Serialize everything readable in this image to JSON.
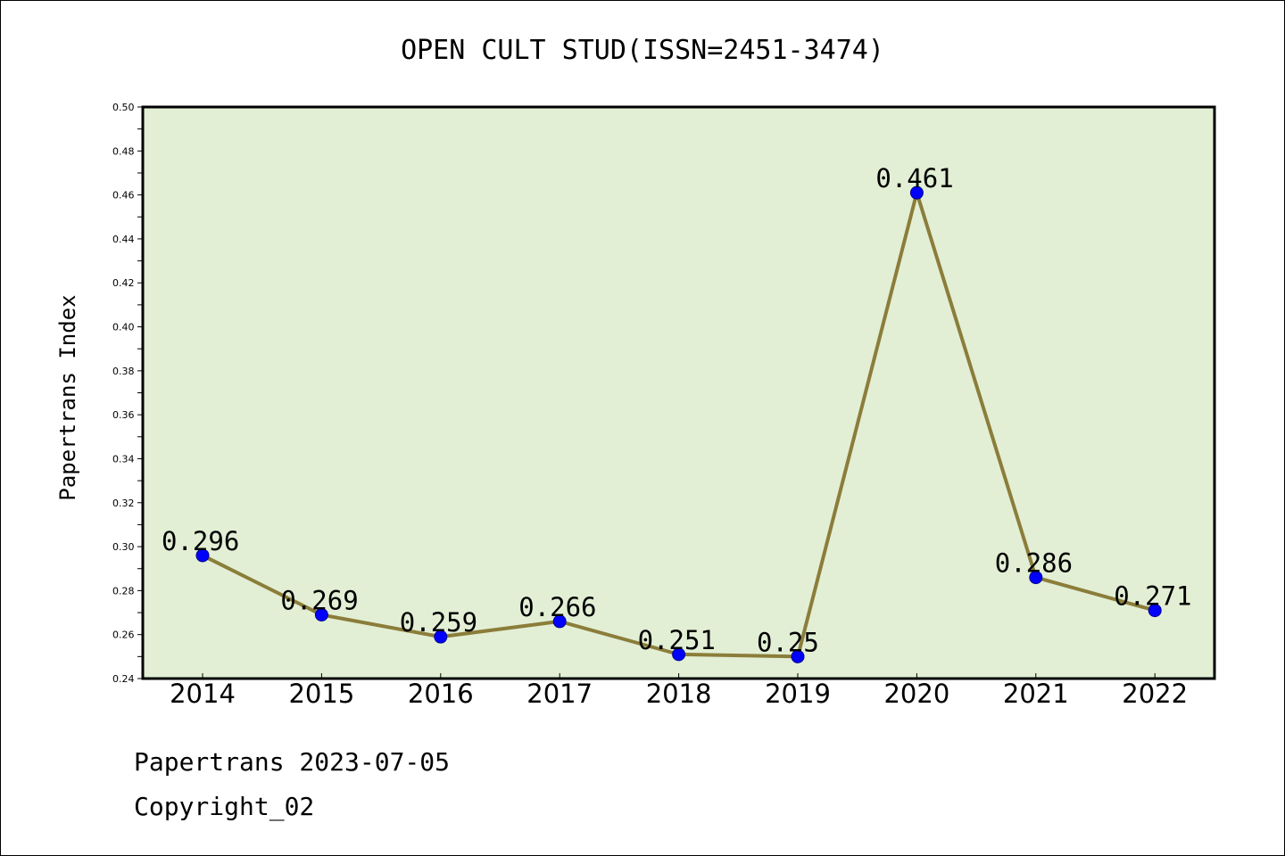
{
  "chart_data": {
    "type": "line",
    "title": "OPEN CULT STUD(ISSN=2451-3474)",
    "xlabel": "",
    "ylabel": "Papertrans Index",
    "categories": [
      "2014",
      "2015",
      "2016",
      "2017",
      "2018",
      "2019",
      "2020",
      "2021",
      "2022"
    ],
    "values": [
      0.296,
      0.269,
      0.259,
      0.266,
      0.251,
      0.25,
      0.461,
      0.286,
      0.271
    ],
    "data_labels": [
      "0.296",
      "0.269",
      "0.259",
      "0.266",
      "0.251",
      "0.25",
      "0.461",
      "0.286",
      "0.271"
    ],
    "ylim": [
      0.24,
      0.5
    ],
    "yticks": [
      "0.24",
      "0.26",
      "0.28",
      "0.30",
      "0.32",
      "0.34",
      "0.36",
      "0.38",
      "0.40",
      "0.42",
      "0.44",
      "0.46",
      "0.48",
      "0.50"
    ],
    "grid": false,
    "colors": {
      "line": "#8B7D3A",
      "marker": "#0000FF",
      "plot_bg": "#E2EFD5"
    }
  },
  "footer": {
    "line1": "Papertrans 2023-07-05",
    "line2": "Copyright_02"
  }
}
